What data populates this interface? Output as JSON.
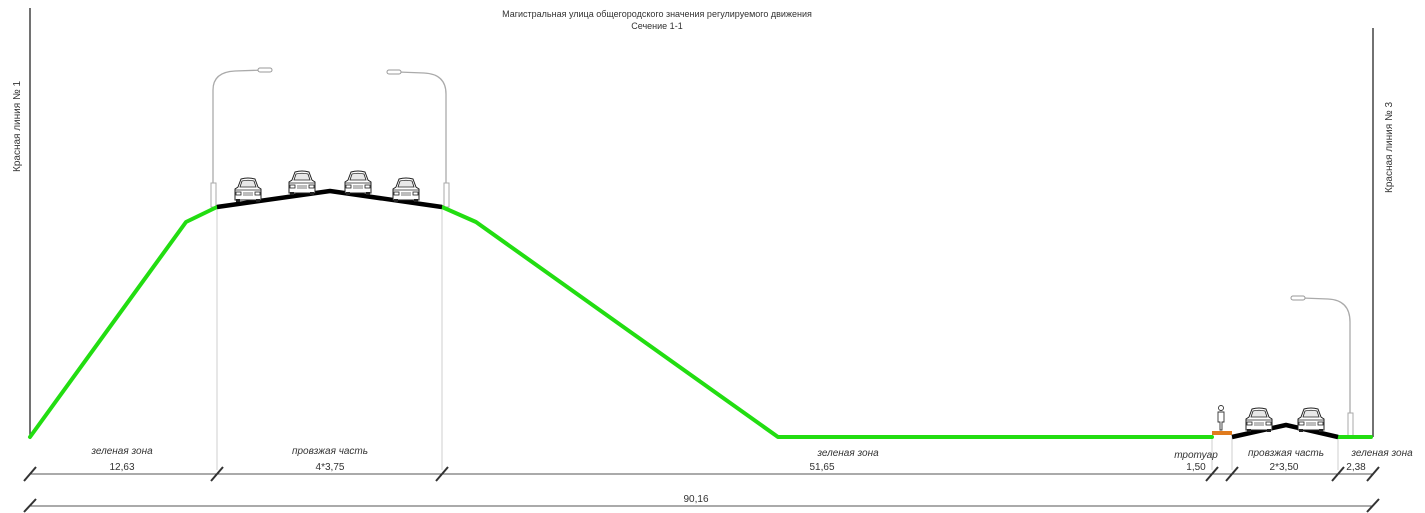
{
  "title": {
    "line1": "Магистральная улица общегородского значения регулируемого движения",
    "line2": "Сечение 1-1"
  },
  "red_lines": {
    "left": "Красная линия № 1",
    "right": "Красная линия № 3"
  },
  "zones": [
    {
      "label": "зеленая зона",
      "dimension": "12,63"
    },
    {
      "label": "провзжая часть",
      "dimension": "4*3,75"
    },
    {
      "label": "зеленая зона",
      "dimension": "51,65"
    },
    {
      "label": "тротуар",
      "dimension": "1,50"
    },
    {
      "label": "провзжая часть",
      "dimension": "2*3,50"
    },
    {
      "label": "зеленая зона",
      "dimension": "2,38"
    }
  ],
  "total_dimension": "90,16",
  "colors": {
    "green_zone": "#22dd11",
    "carriageway": "#000000",
    "sidewalk": "#e07b1e",
    "lines": "#444444"
  },
  "icons": {
    "car": "car-front-icon",
    "lamp": "street-lamp-icon",
    "pedestrian": "pedestrian-icon"
  }
}
